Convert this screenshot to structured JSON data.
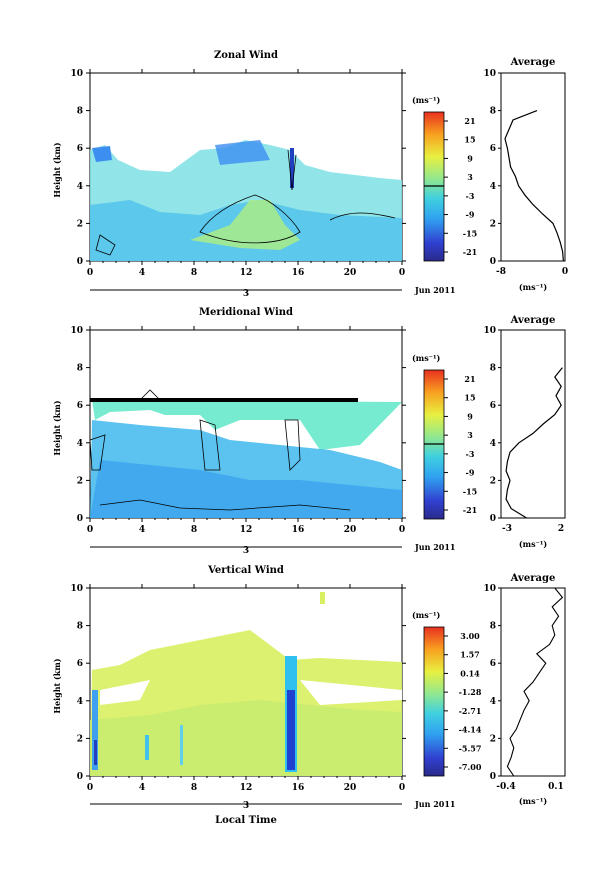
{
  "panels": [
    {
      "title": "Zonal Wind",
      "ylabel": "Height (km)",
      "cbar_unit": "(ms⁻¹)",
      "cbar_ticks": [
        "21",
        "15",
        "9",
        "3",
        "-3",
        "-9",
        "-15",
        "-21"
      ],
      "avg_title": "Average",
      "avg_xticks": [
        "-8",
        "0"
      ],
      "avg_unit": "(ms⁻¹)",
      "xticks": [
        "0",
        "4",
        "8",
        "12",
        "16",
        "20",
        "0"
      ],
      "day": "3",
      "date": "Jun 2011"
    },
    {
      "title": "Meridional Wind",
      "ylabel": "Height (km)",
      "cbar_unit": "(ms⁻¹)",
      "cbar_ticks": [
        "21",
        "15",
        "9",
        "3",
        "-3",
        "-9",
        "-15",
        "-21"
      ],
      "avg_title": "Average",
      "avg_xticks": [
        "-3",
        "2"
      ],
      "avg_unit": "(ms⁻¹)",
      "xticks": [
        "0",
        "4",
        "8",
        "12",
        "16",
        "20",
        "0"
      ],
      "day": "3",
      "date": "Jun 2011"
    },
    {
      "title": "Vertical Wind",
      "ylabel": "Height (km)",
      "cbar_unit": "(ms⁻¹)",
      "cbar_ticks": [
        "3.00",
        "1.57",
        "0.14",
        "-1.28",
        "-2.71",
        "-4.14",
        "-5.57",
        "-7.00"
      ],
      "avg_title": "Average",
      "avg_xticks": [
        "-0.4",
        "0.1"
      ],
      "avg_unit": "(ms⁻¹)",
      "xticks": [
        "0",
        "4",
        "8",
        "12",
        "16",
        "20",
        "0"
      ],
      "day": "3",
      "date": "Jun 2011",
      "xlabel": "Local Time"
    }
  ],
  "yticks": [
    "0",
    "2",
    "4",
    "6",
    "8",
    "10"
  ],
  "chart_data": [
    {
      "type": "heatmap",
      "title": "Zonal Wind",
      "xlabel": "",
      "ylabel": "Height (km)",
      "x_range_hours": [
        0,
        24
      ],
      "ylim": [
        0,
        10
      ],
      "colorbar_range": [
        -21,
        21
      ],
      "colorbar_unit": "ms⁻¹",
      "avg_profile": {
        "title": "Average",
        "xlim": [
          -8,
          0
        ],
        "height_km": [
          0.0,
          0.5,
          1.0,
          1.5,
          2.0,
          2.5,
          3.0,
          3.5,
          4.0,
          4.5,
          5.0,
          5.5,
          6.0,
          6.5,
          7.0,
          7.5,
          8.0
        ],
        "value": [
          -0.2,
          -0.3,
          -0.6,
          -1.0,
          -1.5,
          -2.8,
          -4.0,
          -5.0,
          -5.8,
          -6.2,
          -6.8,
          -7.0,
          -7.2,
          -7.5,
          -7.0,
          -6.5,
          -3.5
        ]
      }
    },
    {
      "type": "heatmap",
      "title": "Meridional Wind",
      "xlabel": "",
      "ylabel": "Height (km)",
      "x_range_hours": [
        0,
        24
      ],
      "ylim": [
        0,
        10
      ],
      "colorbar_range": [
        -21,
        21
      ],
      "colorbar_unit": "ms⁻¹",
      "avg_profile": {
        "title": "Average",
        "xlim": [
          -3,
          2
        ],
        "height_km": [
          0.0,
          0.5,
          1.0,
          1.5,
          2.0,
          2.5,
          3.0,
          3.5,
          4.0,
          4.5,
          5.0,
          5.5,
          6.0,
          6.5,
          7.0,
          7.5,
          8.0
        ],
        "value": [
          -1.0,
          -2.2,
          -2.6,
          -2.5,
          -2.3,
          -2.6,
          -2.5,
          -2.3,
          -1.6,
          -0.5,
          0.3,
          1.2,
          1.7,
          1.3,
          1.7,
          1.2,
          1.8
        ]
      }
    },
    {
      "type": "heatmap",
      "title": "Vertical Wind",
      "xlabel": "Local Time",
      "ylabel": "Height (km)",
      "x_range_hours": [
        0,
        24
      ],
      "ylim": [
        0,
        10
      ],
      "colorbar_range": [
        -7.0,
        3.0
      ],
      "colorbar_unit": "ms⁻¹",
      "avg_profile": {
        "title": "Average",
        "xlim": [
          -0.4,
          0.1
        ],
        "height_km": [
          0.0,
          0.5,
          1.0,
          1.5,
          2.0,
          2.5,
          3.0,
          3.5,
          4.0,
          4.5,
          5.0,
          5.5,
          6.0,
          6.5,
          7.0,
          7.5,
          8.0,
          8.5,
          9.0,
          9.5,
          10.0
        ],
        "value": [
          -0.3,
          -0.35,
          -0.32,
          -0.3,
          -0.33,
          -0.28,
          -0.25,
          -0.22,
          -0.18,
          -0.22,
          -0.15,
          -0.1,
          -0.05,
          -0.12,
          -0.02,
          0.02,
          0.0,
          0.05,
          0.0,
          0.08,
          0.02
        ]
      }
    }
  ]
}
